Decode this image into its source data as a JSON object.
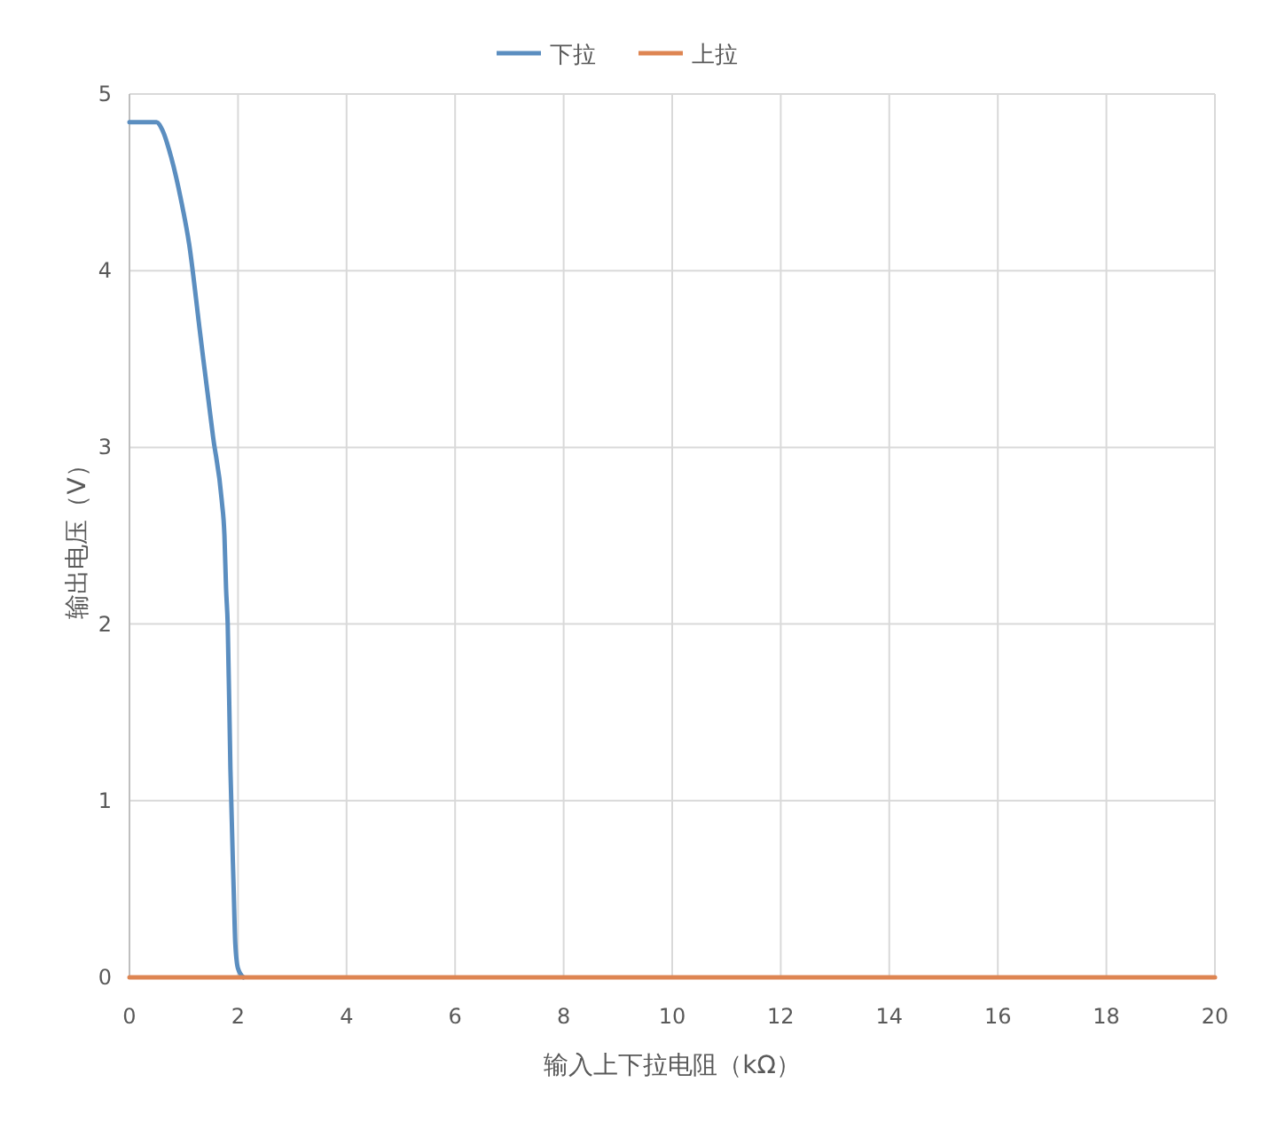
{
  "chart_data": {
    "type": "line",
    "xlabel": "输入上下拉电阻（kΩ）",
    "ylabel": "输出电压（V）",
    "xlim": [
      0,
      20
    ],
    "xticks": [
      0,
      2,
      4,
      6,
      8,
      10,
      12,
      14,
      16,
      18,
      20
    ],
    "ylim": [
      0,
      5
    ],
    "yticks": [
      0,
      1,
      2,
      3,
      4,
      5
    ],
    "grid": true,
    "legend": "top",
    "series": [
      {
        "name": "下拉",
        "color": "#5b8ec0",
        "x": [
          0,
          0.3,
          0.5,
          0.6,
          0.77,
          0.95,
          1.1,
          1.3,
          1.54,
          1.7,
          1.75,
          1.78,
          1.81,
          1.86,
          1.92,
          1.95,
          2.0,
          2.1
        ],
        "values": [
          4.84,
          4.84,
          4.84,
          4.8,
          4.64,
          4.4,
          4.15,
          3.65,
          3.06,
          2.7,
          2.5,
          2.2,
          2.0,
          1.18,
          0.5,
          0.19,
          0.05,
          0
        ]
      },
      {
        "name": "上拉",
        "color": "#de8552",
        "x": [
          0,
          5,
          10,
          15,
          20
        ],
        "values": [
          0,
          0,
          0,
          0,
          0
        ]
      }
    ]
  }
}
